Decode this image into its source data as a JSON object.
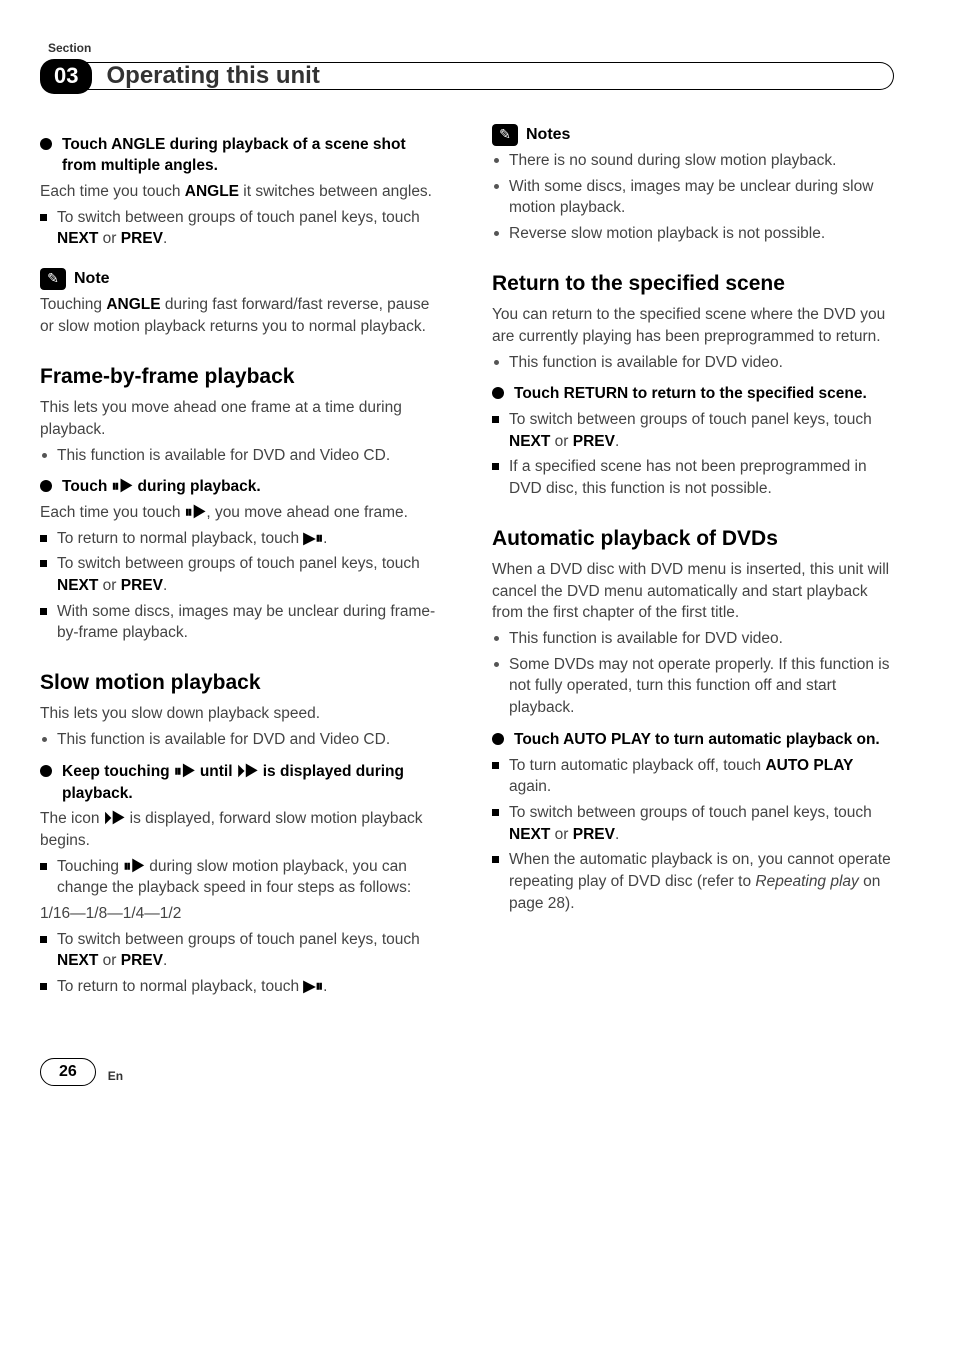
{
  "header": {
    "section_label": "Section",
    "section_number": "03",
    "title": "Operating this unit"
  },
  "left": {
    "angle_step": "Touch ANGLE during playback of a scene shot from multiple angles.",
    "angle_p1a": "Each time you touch ",
    "angle_p1b": "ANGLE",
    "angle_p1c": " it switches between angles.",
    "angle_sub1": "To switch between groups of touch panel keys, touch ",
    "angle_sub1_b1": "NEXT",
    "angle_sub1_mid": " or ",
    "angle_sub1_b2": "PREV",
    "angle_sub1_end": ".",
    "note1_label": "Note",
    "note1_body_a": "Touching ",
    "note1_body_b": "ANGLE",
    "note1_body_c": " during fast forward/fast reverse, pause or slow motion playback returns you to normal playback.",
    "frame_h": "Frame-by-frame playback",
    "frame_p": "This lets you move ahead one frame at a time during playback.",
    "frame_li": "This function is available for DVD and Video CD.",
    "frame_step_a": "Touch ",
    "frame_step_sym": "⏸▶",
    "frame_step_b": " during playback.",
    "frame_p2a": "Each time you touch ",
    "frame_p2sym": "⏸▶",
    "frame_p2b": ", you move ahead one frame.",
    "frame_sub1": "To return to normal playback, touch ",
    "frame_sub1_sym": "▶⏸",
    "frame_sub1_end": ".",
    "frame_sub2": "To switch between groups of touch panel keys, touch ",
    "frame_sub2_b1": "NEXT",
    "frame_sub2_mid": " or ",
    "frame_sub2_b2": "PREV",
    "frame_sub2_end": ".",
    "frame_sub3": "With some discs, images may be unclear during frame-by-frame playback.",
    "slow_h": "Slow motion playback",
    "slow_p": "This lets you slow down playback speed.",
    "slow_li": "This function is available for DVD and Video CD.",
    "slow_step_a": "Keep touching ",
    "slow_step_sym1": "⏸▶",
    "slow_step_b": " until ",
    "slow_step_sym2": "⏵▶",
    "slow_step_c": " is displayed during playback.",
    "slow_p2a": "The icon ",
    "slow_p2sym": "⏵▶",
    "slow_p2b": " is displayed, forward slow motion playback begins.",
    "slow_sub1a": "Touching ",
    "slow_sub1sym": "⏸▶",
    "slow_sub1b": " during slow motion playback, you can change the playback speed in four steps as follows:",
    "slow_speeds": "1/16—1/8—1/4—1/2",
    "slow_sub2": "To switch between groups of touch panel keys, touch ",
    "slow_sub2_b1": "NEXT",
    "slow_sub2_mid": " or ",
    "slow_sub2_b2": "PREV",
    "slow_sub2_end": ".",
    "slow_sub3": "To return to normal playback, touch ",
    "slow_sub3_sym": "▶⏸",
    "slow_sub3_end": "."
  },
  "right": {
    "notes_label": "Notes",
    "notes_li1": "There is no sound during slow motion playback.",
    "notes_li2": "With some discs, images may be unclear during slow motion playback.",
    "notes_li3": "Reverse slow motion playback is not possible.",
    "return_h": "Return to the specified scene",
    "return_p": "You can return to the specified scene where the DVD you are currently playing has been preprogrammed to return.",
    "return_li": "This function is available for DVD video.",
    "return_step": "Touch RETURN to return to the specified scene.",
    "return_sub1": "To switch between groups of touch panel keys, touch ",
    "return_sub1_b1": "NEXT",
    "return_sub1_mid": " or ",
    "return_sub1_b2": "PREV",
    "return_sub1_end": ".",
    "return_sub2": "If a specified scene has not been preprogrammed in DVD disc, this function is not possible.",
    "auto_h": "Automatic playback of DVDs",
    "auto_p": "When a DVD disc with DVD menu is inserted, this unit will cancel the DVD menu automatically and start playback from the first chapter of the first title.",
    "auto_li1": "This function is available for DVD video.",
    "auto_li2": "Some DVDs may not operate properly. If this function is not fully operated, turn this function off and start playback.",
    "auto_step": "Touch AUTO PLAY to turn automatic playback on.",
    "auto_sub1": "To turn automatic playback off, touch ",
    "auto_sub1_b": "AUTO PLAY",
    "auto_sub1_end": " again.",
    "auto_sub2": "To switch between groups of touch panel keys, touch ",
    "auto_sub2_b1": "NEXT",
    "auto_sub2_mid": " or ",
    "auto_sub2_b2": "PREV",
    "auto_sub2_end": ".",
    "auto_sub3a": "When the automatic playback is on, you cannot operate repeating play of DVD disc (refer to ",
    "auto_sub3_i": "Repeating play",
    "auto_sub3b": " on page 28)."
  },
  "footer": {
    "page": "26",
    "lang": "En"
  }
}
